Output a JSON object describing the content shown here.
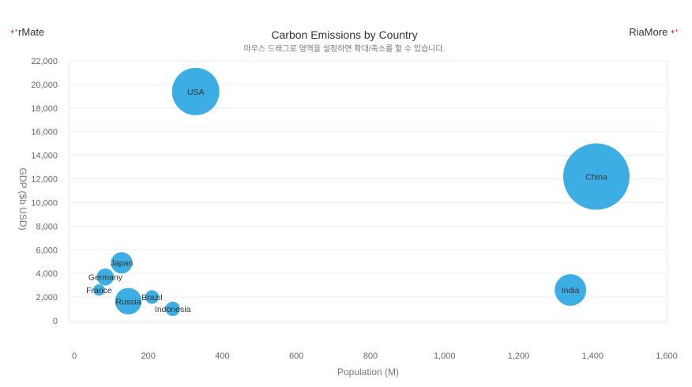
{
  "brand": {
    "left_text": "rMate",
    "right_text": "RiaMore",
    "mark": "+⁺"
  },
  "chart_data": {
    "type": "bubble",
    "title": "Carbon Emissions by Country",
    "subtitle": "마우스 드래그로 영역을 설정하면 확대/축소를 할 수 있습니다.",
    "xlabel": "Population (M)",
    "ylabel": "GDP ($b USD)",
    "xlim": [
      0,
      1600
    ],
    "ylim": [
      0,
      22000
    ],
    "x_ticks": [
      0,
      200,
      400,
      600,
      800,
      1000,
      1200,
      1400,
      1600
    ],
    "x_tick_labels": [
      "0",
      "200",
      "400",
      "600",
      "800",
      "1,000",
      "1,200",
      "1,400",
      "1,600"
    ],
    "y_ticks": [
      0,
      2000,
      4000,
      6000,
      8000,
      10000,
      12000,
      14000,
      16000,
      18000,
      20000,
      22000
    ],
    "y_tick_labels": [
      "0",
      "2,000",
      "4,000",
      "6,000",
      "8,000",
      "10,000",
      "12,000",
      "14,000",
      "16,000",
      "18,000",
      "20,000",
      "22,000"
    ],
    "grid": true,
    "bubble_color": "#3daee3",
    "points": [
      {
        "label": "USA",
        "x": 328,
        "y": 19400,
        "size": 5400
      },
      {
        "label": "China",
        "x": 1410,
        "y": 12200,
        "size": 10600
      },
      {
        "label": "India",
        "x": 1340,
        "y": 2600,
        "size": 2400
      },
      {
        "label": "Japan",
        "x": 128,
        "y": 4900,
        "size": 1100
      },
      {
        "label": "Germany",
        "x": 84,
        "y": 3700,
        "size": 700
      },
      {
        "label": "France",
        "x": 67,
        "y": 2600,
        "size": 320
      },
      {
        "label": "Russia",
        "x": 146,
        "y": 1650,
        "size": 1700
      },
      {
        "label": "Brazil",
        "x": 210,
        "y": 2000,
        "size": 450
      },
      {
        "label": "Indonesia",
        "x": 266,
        "y": 1000,
        "size": 500
      }
    ]
  }
}
